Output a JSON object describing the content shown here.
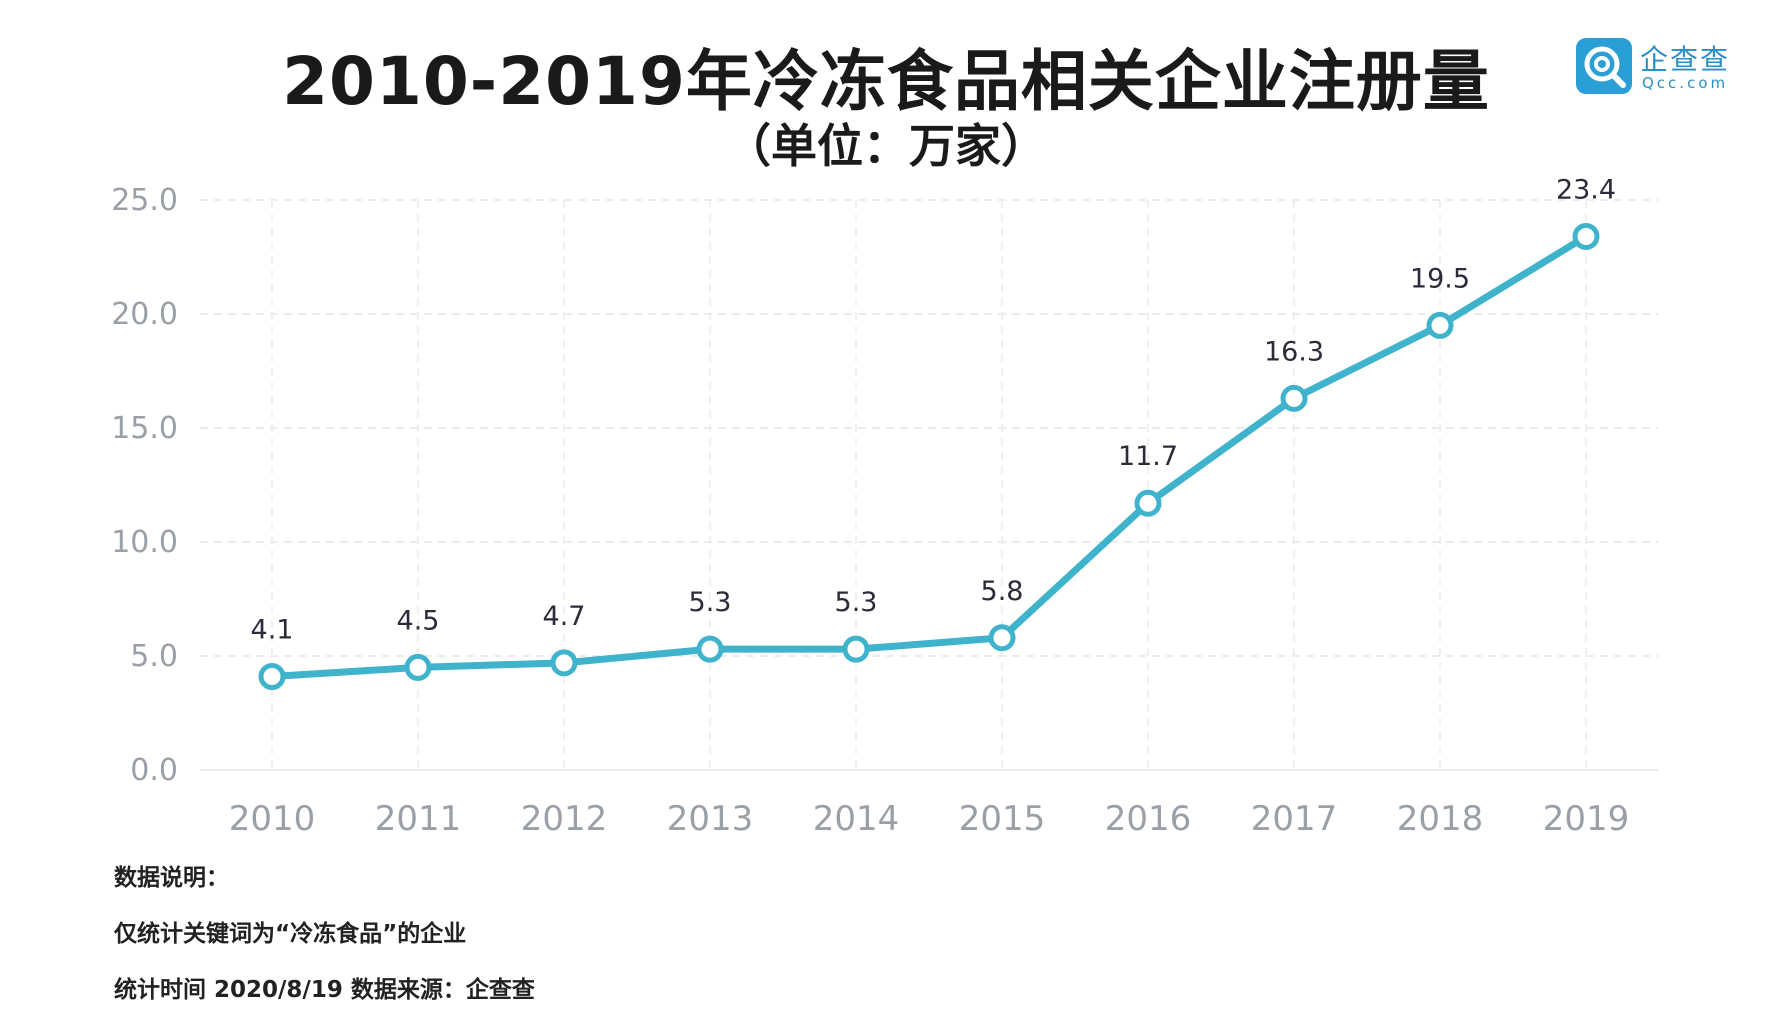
{
  "title": "2010-2019年冷冻食品相关企业注册量",
  "subtitle": "（单位：万家）",
  "logo": {
    "name": "企查查",
    "domain": "Qcc.com",
    "icon": "qcc-search-logo-icon",
    "color": "#2a9fd6"
  },
  "chart_data": {
    "type": "line",
    "categories": [
      "2010",
      "2011",
      "2012",
      "2013",
      "2014",
      "2015",
      "2016",
      "2017",
      "2018",
      "2019"
    ],
    "series": [
      {
        "values": [
          4.1,
          4.5,
          4.7,
          5.3,
          5.3,
          5.8,
          11.7,
          16.3,
          19.5,
          23.4
        ]
      }
    ],
    "data_labels": [
      "4.1",
      "4.5",
      "4.7",
      "5.3",
      "5.3",
      "5.8",
      "11.7",
      "16.3",
      "19.5",
      "23.4"
    ],
    "y_ticks": [
      "0.0",
      "5.0",
      "10.0",
      "15.0",
      "20.0",
      "25.0"
    ],
    "ylim": [
      0,
      25
    ],
    "grid": true,
    "line_color": "#3fb3cc",
    "xlabel": "",
    "ylabel": ""
  },
  "notes": {
    "heading": "数据说明：",
    "line1": "仅统计关键词为“冷冻食品”的企业",
    "line2": "统计时间 2020/8/19  数据来源：企查查"
  }
}
